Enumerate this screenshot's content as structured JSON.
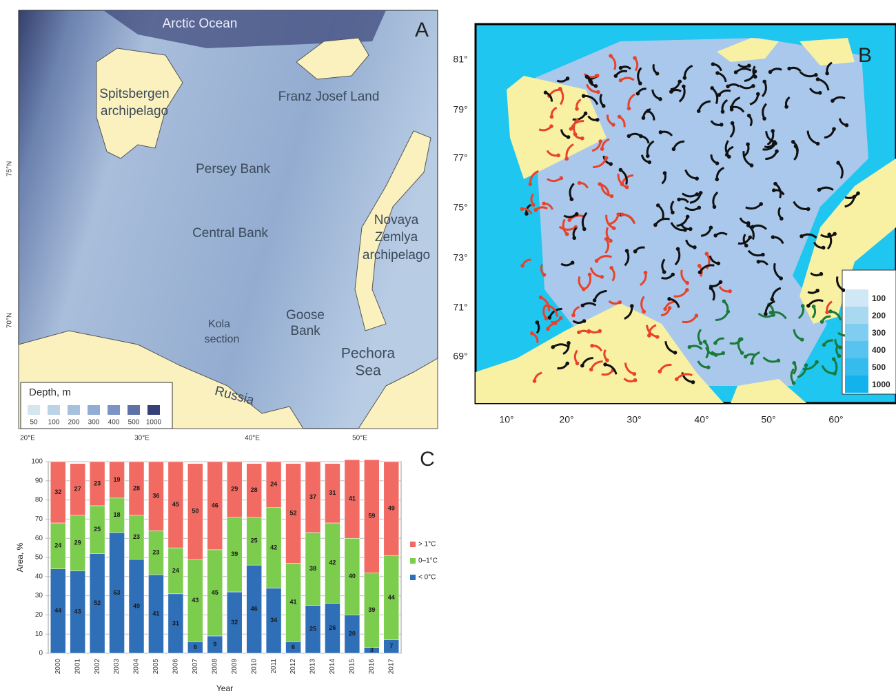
{
  "map_a": {
    "panel": "A",
    "ocean": "Arctic Ocean",
    "spitsbergen": [
      "Spitsbergen",
      "archipelago"
    ],
    "franz_josef": "Franz Josef Land",
    "persey": "Persey Bank",
    "central": "Central Bank",
    "novaya": [
      "Novaya",
      "Zemlya",
      "archipelago"
    ],
    "kola": [
      "Kola",
      "section"
    ],
    "goose": [
      "Goose",
      "Bank"
    ],
    "pechora": [
      "Pechora",
      "Sea"
    ],
    "russia": "Russia",
    "legend_title": "Depth, m",
    "legend_labels": [
      "50",
      "100",
      "200",
      "300",
      "400",
      "500",
      "1000"
    ],
    "lat_labels": [
      "75°N",
      "70°N"
    ],
    "lon_labels": [
      "20°E",
      "30°E",
      "40°E",
      "50°E"
    ]
  },
  "map_b": {
    "panel": "B",
    "lat_labels": [
      "81°",
      "79°",
      "77°",
      "75°",
      "73°",
      "71°",
      "69°"
    ],
    "lon_labels": [
      "10°",
      "20°",
      "30°",
      "40°",
      "50°",
      "60°"
    ],
    "legend_labels": [
      "100",
      "200",
      "300",
      "400",
      "500",
      "1000"
    ]
  },
  "chart_data": {
    "type": "stacked_bar",
    "panel": "C",
    "x_label": "Year",
    "y_label": "Area, %",
    "categories": [
      "2000",
      "2001",
      "2002",
      "2003",
      "2004",
      "2005",
      "2006",
      "2007",
      "2008",
      "2009",
      "2010",
      "2011",
      "2012",
      "2013",
      "2014",
      "2015",
      "2016",
      "2017"
    ],
    "series": [
      {
        "name": "< 0°C",
        "color": "#2f6fb8",
        "values": [
          44,
          43,
          52,
          63,
          49,
          41,
          31,
          6,
          9,
          32,
          46,
          34,
          6,
          25,
          26,
          20,
          3,
          7
        ]
      },
      {
        "name": "0–1°C",
        "color": "#7ccc4e",
        "values": [
          24,
          29,
          25,
          18,
          23,
          23,
          24,
          43,
          45,
          39,
          25,
          42,
          41,
          38,
          42,
          40,
          39,
          44
        ]
      },
      {
        "name": "> 1°C",
        "color": "#f26b63",
        "values": [
          32,
          27,
          23,
          19,
          28,
          36,
          45,
          50,
          46,
          29,
          28,
          24,
          52,
          37,
          31,
          41,
          59,
          49
        ]
      }
    ],
    "ylim": [
      0,
      100
    ],
    "yticks": [
      0,
      10,
      20,
      30,
      40,
      50,
      60,
      70,
      80,
      90,
      100
    ]
  }
}
